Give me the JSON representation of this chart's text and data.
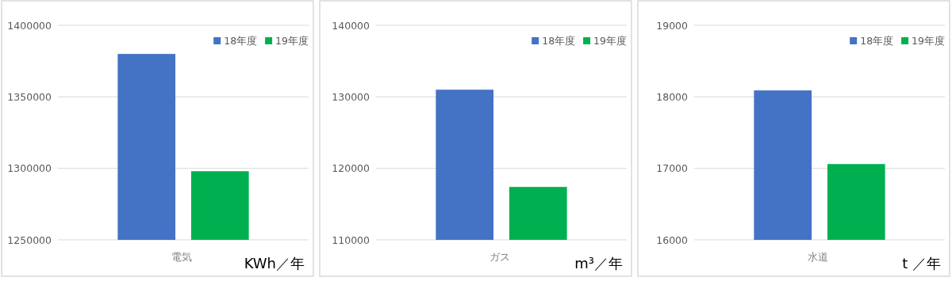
{
  "chart_data": [
    {
      "type": "bar",
      "categories": [
        "電気"
      ],
      "series": [
        {
          "name": "18年度",
          "color": "#4472c4",
          "values": [
            1380000
          ]
        },
        {
          "name": "19年度",
          "color": "#00b050",
          "values": [
            1298000
          ]
        }
      ],
      "ylim": [
        1250000,
        1400000
      ],
      "yticks": [
        1250000,
        1300000,
        1350000,
        1400000
      ],
      "grid": "y",
      "legend": "top right",
      "annotations": [
        "KWh／年"
      ]
    },
    {
      "type": "bar",
      "categories": [
        "ガス"
      ],
      "series": [
        {
          "name": "18年度",
          "color": "#4472c4",
          "values": [
            131000
          ]
        },
        {
          "name": "19年度",
          "color": "#00b050",
          "values": [
            117400
          ]
        }
      ],
      "ylim": [
        110000,
        140000
      ],
      "yticks": [
        110000,
        120000,
        130000,
        140000
      ],
      "grid": "y",
      "legend": "top right",
      "annotations": [
        "m³／年"
      ]
    },
    {
      "type": "bar",
      "categories": [
        "水道"
      ],
      "series": [
        {
          "name": "18年度",
          "color": "#4472c4",
          "values": [
            18090
          ]
        },
        {
          "name": "19年度",
          "color": "#00b050",
          "values": [
            17060
          ]
        }
      ],
      "ylim": [
        16000,
        19000
      ],
      "yticks": [
        16000,
        17000,
        18000,
        19000
      ],
      "grid": "y",
      "legend": "top right",
      "annotations": [
        "t ／年"
      ]
    }
  ]
}
